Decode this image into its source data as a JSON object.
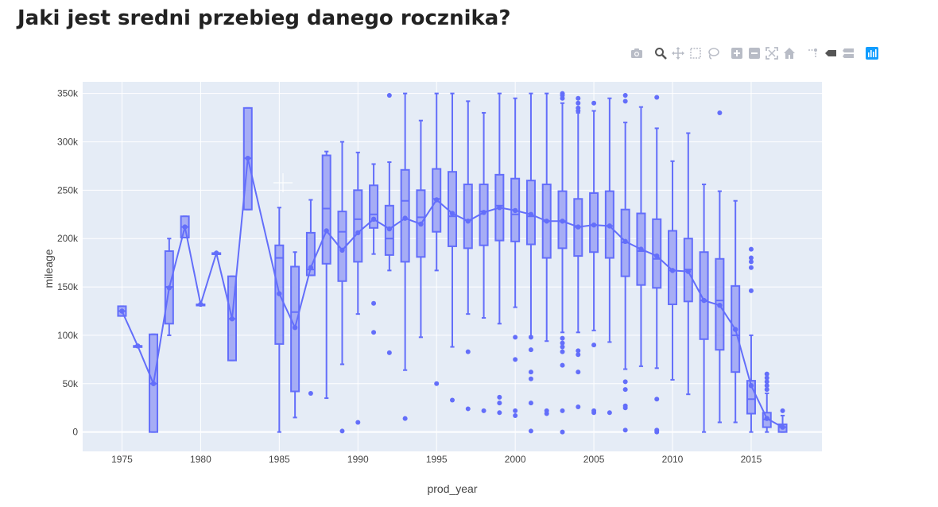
{
  "page": {
    "title": "Jaki jest sredni przebieg danego rocznika?"
  },
  "modebar": [
    {
      "name": "download-plot-icon",
      "title": "Download plot as a png"
    },
    {
      "name": "zoom-icon",
      "title": "Zoom"
    },
    {
      "name": "pan-icon",
      "title": "Pan"
    },
    {
      "name": "box-select-icon",
      "title": "Box Select"
    },
    {
      "name": "lasso-select-icon",
      "title": "Lasso Select"
    },
    {
      "name": "zoom-in-icon",
      "title": "Zoom in"
    },
    {
      "name": "zoom-out-icon",
      "title": "Zoom out"
    },
    {
      "name": "autoscale-icon",
      "title": "Autoscale"
    },
    {
      "name": "reset-axes-icon",
      "title": "Reset axes"
    },
    {
      "name": "spike-lines-icon",
      "title": "Toggle Spike Lines"
    },
    {
      "name": "hover-closest-icon",
      "title": "Show closest data on hover"
    },
    {
      "name": "hover-compare-icon",
      "title": "Compare data on hover"
    },
    {
      "name": "plotly-logo-icon",
      "title": "Produced with Plotly"
    }
  ],
  "chart_data": {
    "type": "box",
    "title": "",
    "xlabel": "prod_year",
    "ylabel": "mileage",
    "xlim": [
      1972.5,
      2019.5
    ],
    "ylim": [
      -20000,
      362000
    ],
    "xticks": [
      1975,
      1980,
      1985,
      1990,
      1995,
      2000,
      2005,
      2010,
      2015
    ],
    "xtick_labels": [
      "1975",
      "1980",
      "1985",
      "1990",
      "1995",
      "2000",
      "2005",
      "2010",
      "2015"
    ],
    "yticks": [
      0,
      50000,
      100000,
      150000,
      200000,
      250000,
      300000,
      350000
    ],
    "ytick_labels": [
      "0",
      "50k",
      "100k",
      "150k",
      "200k",
      "250k",
      "300k",
      "350k"
    ],
    "grid": true,
    "colors": {
      "box_fill": "#a6adf5",
      "line": "#636efa",
      "plot_bg": "#e5ecf6"
    },
    "boxes": [
      {
        "x": 1975,
        "lf": 120000,
        "q1": 120000,
        "med": 125000,
        "q3": 130000,
        "uf": 130000,
        "mean": 125000,
        "out": []
      },
      {
        "x": 1976,
        "lf": 89000,
        "q1": 89000,
        "med": 89000,
        "q3": 89000,
        "uf": 89000,
        "mean": 89000,
        "out": []
      },
      {
        "x": 1977,
        "lf": 0,
        "q1": 0,
        "med": 50000,
        "q3": 101000,
        "uf": 101000,
        "mean": 50000,
        "out": []
      },
      {
        "x": 1978,
        "lf": 100000,
        "q1": 112000,
        "med": 150000,
        "q3": 187000,
        "uf": 200000,
        "mean": 149000,
        "out": []
      },
      {
        "x": 1979,
        "lf": 201000,
        "q1": 201000,
        "med": 212000,
        "q3": 223000,
        "uf": 223000,
        "mean": 212000,
        "out": []
      },
      {
        "x": 1980,
        "lf": 132000,
        "q1": 132000,
        "med": 132000,
        "q3": 132000,
        "uf": 132000,
        "mean": 132000,
        "out": []
      },
      {
        "x": 1981,
        "lf": 185000,
        "q1": 185000,
        "med": 185000,
        "q3": 185000,
        "uf": 185000,
        "mean": 185000,
        "out": []
      },
      {
        "x": 1982,
        "lf": 74000,
        "q1": 74000,
        "med": 117000,
        "q3": 161000,
        "uf": 161000,
        "mean": 117000,
        "out": []
      },
      {
        "x": 1983,
        "lf": 230000,
        "q1": 230000,
        "med": 283000,
        "q3": 335000,
        "uf": 335000,
        "mean": 283000,
        "out": []
      },
      {
        "x": 1985,
        "lf": 0,
        "q1": 91000,
        "med": 180000,
        "q3": 193000,
        "uf": 232000,
        "mean": 143000,
        "out": []
      },
      {
        "x": 1986,
        "lf": 15000,
        "q1": 42000,
        "med": 124000,
        "q3": 171000,
        "uf": 186000,
        "mean": 108000,
        "out": []
      },
      {
        "x": 1987,
        "lf": 162000,
        "q1": 162000,
        "med": 168000,
        "q3": 206000,
        "uf": 240000,
        "mean": 170000,
        "out": [
          40000
        ]
      },
      {
        "x": 1988,
        "lf": 35000,
        "q1": 174000,
        "med": 231000,
        "q3": 286000,
        "uf": 290000,
        "mean": 208000,
        "out": []
      },
      {
        "x": 1989,
        "lf": 70000,
        "q1": 156000,
        "med": 207000,
        "q3": 228000,
        "uf": 300000,
        "mean": 188000,
        "out": [
          1000
        ]
      },
      {
        "x": 1990,
        "lf": 122000,
        "q1": 176000,
        "med": 220000,
        "q3": 250000,
        "uf": 289000,
        "mean": 206000,
        "out": [
          10000
        ]
      },
      {
        "x": 1991,
        "lf": 184000,
        "q1": 211000,
        "med": 225000,
        "q3": 255000,
        "uf": 277000,
        "mean": 220000,
        "out": [
          103000,
          133000
        ]
      },
      {
        "x": 1992,
        "lf": 167000,
        "q1": 183000,
        "med": 200000,
        "q3": 234000,
        "uf": 279000,
        "mean": 210000,
        "out": [
          82000,
          348000
        ]
      },
      {
        "x": 1993,
        "lf": 64000,
        "q1": 176000,
        "med": 239000,
        "q3": 271000,
        "uf": 350000,
        "mean": 221000,
        "out": [
          14000
        ]
      },
      {
        "x": 1994,
        "lf": 98000,
        "q1": 181000,
        "med": 222000,
        "q3": 250000,
        "uf": 322000,
        "mean": 215000,
        "out": []
      },
      {
        "x": 1995,
        "lf": 167000,
        "q1": 207000,
        "med": 241000,
        "q3": 272000,
        "uf": 350000,
        "mean": 240000,
        "out": [
          50000
        ]
      },
      {
        "x": 1996,
        "lf": 88000,
        "q1": 192000,
        "med": 223000,
        "q3": 269000,
        "uf": 350000,
        "mean": 226000,
        "out": [
          33000
        ]
      },
      {
        "x": 1997,
        "lf": 122000,
        "q1": 190000,
        "med": 219000,
        "q3": 256000,
        "uf": 342000,
        "mean": 218000,
        "out": [
          24000,
          83000
        ]
      },
      {
        "x": 1998,
        "lf": 118000,
        "q1": 193000,
        "med": 228000,
        "q3": 256000,
        "uf": 330000,
        "mean": 227000,
        "out": [
          22000
        ]
      },
      {
        "x": 1999,
        "lf": 112000,
        "q1": 198000,
        "med": 234000,
        "q3": 266000,
        "uf": 350000,
        "mean": 232000,
        "out": [
          20000,
          30000,
          36000
        ]
      },
      {
        "x": 2000,
        "lf": 129000,
        "q1": 197000,
        "med": 225000,
        "q3": 262000,
        "uf": 345000,
        "mean": 229000,
        "out": [
          17000,
          22000,
          75000,
          98000
        ]
      },
      {
        "x": 2001,
        "lf": 99000,
        "q1": 194000,
        "med": 223000,
        "q3": 260000,
        "uf": 350000,
        "mean": 225000,
        "out": [
          1000,
          30000,
          55000,
          62000,
          85000,
          98000
        ]
      },
      {
        "x": 2002,
        "lf": 94000,
        "q1": 180000,
        "med": 218000,
        "q3": 256000,
        "uf": 350000,
        "mean": 218000,
        "out": [
          19000,
          22000
        ]
      },
      {
        "x": 2003,
        "lf": 103000,
        "q1": 190000,
        "med": 218000,
        "q3": 249000,
        "uf": 340000,
        "mean": 218000,
        "out": [
          0,
          22000,
          69000,
          83000,
          88000,
          92000,
          97000,
          345000,
          348000,
          350000
        ]
      },
      {
        "x": 2004,
        "lf": 103000,
        "q1": 182000,
        "med": 212000,
        "q3": 241000,
        "uf": 330000,
        "mean": 212000,
        "out": [
          26000,
          62000,
          80000,
          84000,
          332000,
          335000,
          340000,
          345000
        ]
      },
      {
        "x": 2005,
        "lf": 105000,
        "q1": 186000,
        "med": 214000,
        "q3": 247000,
        "uf": 332000,
        "mean": 214000,
        "out": [
          20000,
          22000,
          90000,
          340000
        ]
      },
      {
        "x": 2006,
        "lf": 93000,
        "q1": 180000,
        "med": 213000,
        "q3": 249000,
        "uf": 345000,
        "mean": 213000,
        "out": [
          20000
        ]
      },
      {
        "x": 2007,
        "lf": 65000,
        "q1": 161000,
        "med": 196000,
        "q3": 230000,
        "uf": 320000,
        "mean": 197000,
        "out": [
          2000,
          25000,
          27000,
          44000,
          52000,
          342000,
          348000
        ]
      },
      {
        "x": 2008,
        "lf": 68000,
        "q1": 152000,
        "med": 187000,
        "q3": 226000,
        "uf": 336000,
        "mean": 189000,
        "out": []
      },
      {
        "x": 2009,
        "lf": 66000,
        "q1": 149000,
        "med": 179000,
        "q3": 220000,
        "uf": 314000,
        "mean": 182000,
        "out": [
          0,
          2000,
          34000,
          346000
        ]
      },
      {
        "x": 2010,
        "lf": 54000,
        "q1": 132000,
        "med": 167000,
        "q3": 208000,
        "uf": 280000,
        "mean": 167000,
        "out": []
      },
      {
        "x": 2011,
        "lf": 39000,
        "q1": 135000,
        "med": 168000,
        "q3": 200000,
        "uf": 309000,
        "mean": 166000,
        "out": []
      },
      {
        "x": 2012,
        "lf": 0,
        "q1": 96000,
        "med": 136000,
        "q3": 186000,
        "uf": 256000,
        "mean": 136000,
        "out": []
      },
      {
        "x": 2013,
        "lf": 10000,
        "q1": 85000,
        "med": 136000,
        "q3": 179000,
        "uf": 249000,
        "mean": 131000,
        "out": [
          330000
        ]
      },
      {
        "x": 2014,
        "lf": 10000,
        "q1": 62000,
        "med": 100000,
        "q3": 151000,
        "uf": 239000,
        "mean": 106000,
        "out": []
      },
      {
        "x": 2015,
        "lf": 0,
        "q1": 19000,
        "med": 34000,
        "q3": 53000,
        "uf": 100000,
        "mean": 48000,
        "out": [
          146000,
          170000,
          176000,
          180000,
          189000
        ]
      },
      {
        "x": 2016,
        "lf": 0,
        "q1": 5000,
        "med": 13000,
        "q3": 20000,
        "uf": 40000,
        "mean": 14000,
        "out": [
          44000,
          48000,
          52000,
          56000,
          60000
        ]
      },
      {
        "x": 2017,
        "lf": 0,
        "q1": 0,
        "med": 5000,
        "q3": 8000,
        "uf": 17000,
        "mean": 5000,
        "out": [
          22000
        ]
      }
    ]
  }
}
